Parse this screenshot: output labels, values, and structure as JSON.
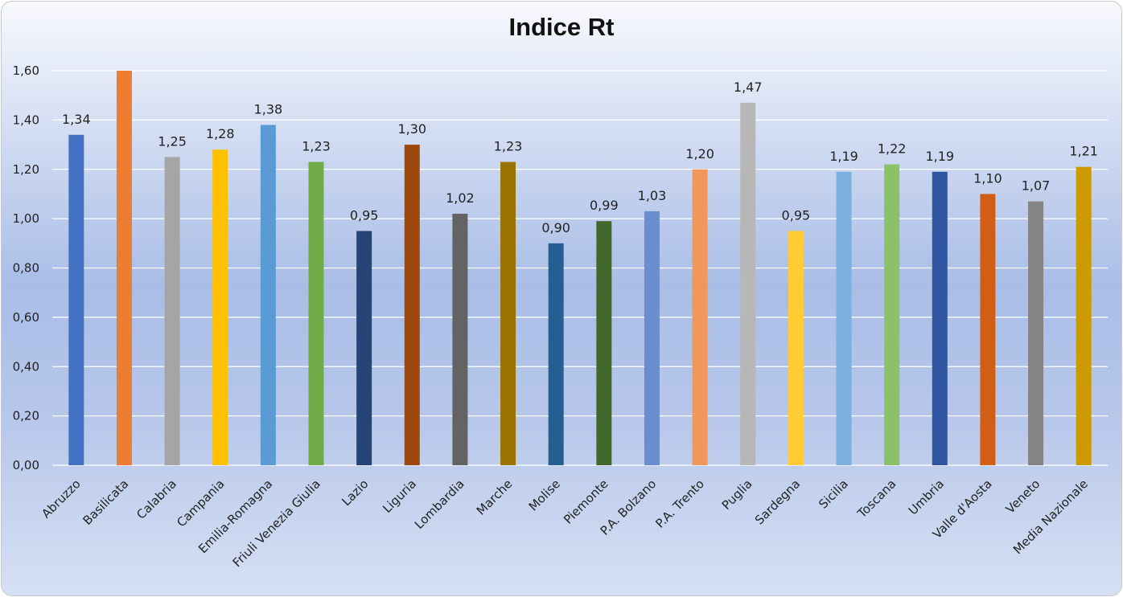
{
  "chart_data": {
    "type": "bar",
    "title": "Indice Rt",
    "categories": [
      "Abruzzo",
      "Basilicata",
      "Calabria",
      "Campania",
      "Emilia-Romagna",
      "Friuli Venezia Giulia",
      "Lazio",
      "Liguria",
      "Lombardia",
      "Marche",
      "Molise",
      "Piemonte",
      "P.A. Bolzano",
      "P.A. Trento",
      "Puglia",
      "Sardegna",
      "Sicilia",
      "Toscana",
      "Umbria",
      "Valle d'Aosta",
      "Veneto",
      "Media Nazionale"
    ],
    "values": [
      1.34,
      1.6,
      1.25,
      1.28,
      1.38,
      1.23,
      0.95,
      1.3,
      1.02,
      1.23,
      0.9,
      0.99,
      1.03,
      1.2,
      1.47,
      0.95,
      1.19,
      1.22,
      1.19,
      1.1,
      1.07,
      1.21
    ],
    "data_labels": [
      "1,34",
      "",
      "1,25",
      "1,28",
      "1,38",
      "1,23",
      "0,95",
      "1,30",
      "1,02",
      "1,23",
      "0,90",
      "0,99",
      "1,03",
      "1,20",
      "1,47",
      "0,95",
      "1,19",
      "1,22",
      "1,19",
      "1,10",
      "1,07",
      "1,21"
    ],
    "colors": [
      "#4472c4",
      "#ed7d31",
      "#a5a5a5",
      "#ffc000",
      "#5b9bd5",
      "#70ad47",
      "#264478",
      "#9e480e",
      "#636363",
      "#997300",
      "#255e91",
      "#43682b",
      "#698ed0",
      "#f1975a",
      "#b7b7b7",
      "#ffcd33",
      "#7cafdd",
      "#8cc168",
      "#2f55a0",
      "#d15e14",
      "#848484",
      "#cc9a00"
    ],
    "ylim": [
      0,
      1.6
    ],
    "yticks": [
      "0,00",
      "0,20",
      "0,40",
      "0,60",
      "0,80",
      "1,00",
      "1,20",
      "1,40",
      "1,60"
    ],
    "grid": true,
    "legend": "none"
  }
}
